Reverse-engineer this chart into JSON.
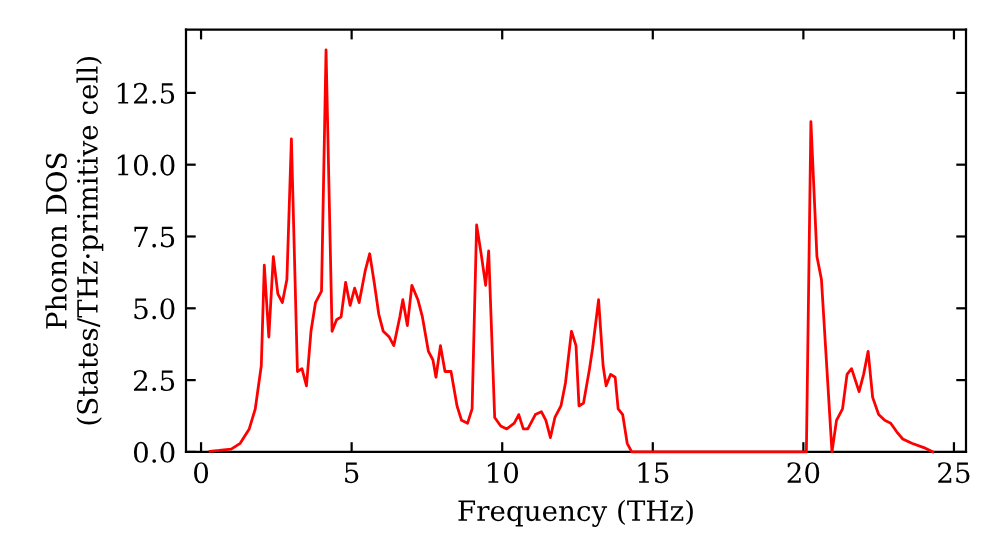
{
  "chart_data": {
    "type": "line",
    "xlabel": "Frequency (THz)",
    "ylabel": "Phonon DOS\n(States/THz·primitive cell)",
    "x": [
      0.3,
      0.6,
      1.0,
      1.3,
      1.6,
      1.8,
      2.0,
      2.1,
      2.25,
      2.4,
      2.55,
      2.7,
      2.85,
      3.0,
      3.2,
      3.35,
      3.5,
      3.65,
      3.8,
      4.0,
      4.15,
      4.35,
      4.5,
      4.65,
      4.8,
      4.95,
      5.1,
      5.25,
      5.45,
      5.6,
      5.75,
      5.9,
      6.05,
      6.25,
      6.4,
      6.6,
      6.7,
      6.85,
      7.0,
      7.2,
      7.35,
      7.55,
      7.7,
      7.8,
      7.95,
      8.1,
      8.3,
      8.5,
      8.65,
      8.85,
      9.0,
      9.15,
      9.3,
      9.45,
      9.55,
      9.75,
      9.95,
      10.15,
      10.4,
      10.55,
      10.7,
      10.85,
      11.1,
      11.3,
      11.45,
      11.6,
      11.75,
      11.95,
      12.1,
      12.3,
      12.45,
      12.55,
      12.7,
      12.9,
      13.0,
      13.2,
      13.35,
      13.45,
      13.6,
      13.75,
      13.85,
      14.0,
      14.15,
      14.3,
      20.0,
      20.1,
      20.25,
      20.45,
      20.6,
      20.95,
      21.1,
      21.3,
      21.45,
      21.6,
      21.85,
      22.0,
      22.15,
      22.3,
      22.5,
      22.7,
      22.9,
      23.1,
      23.3,
      23.6,
      24.0,
      24.3
    ],
    "series": [
      {
        "color": "#ff0000",
        "values": [
          0.02,
          0.05,
          0.1,
          0.3,
          0.8,
          1.5,
          3.0,
          6.5,
          4.0,
          6.8,
          5.5,
          5.2,
          6.0,
          10.9,
          2.8,
          2.9,
          2.3,
          4.2,
          5.2,
          5.6,
          14.0,
          4.2,
          4.6,
          4.7,
          5.9,
          5.1,
          5.7,
          5.2,
          6.3,
          6.9,
          5.9,
          4.8,
          4.2,
          4.0,
          3.7,
          4.7,
          5.3,
          4.4,
          5.8,
          5.3,
          4.7,
          3.5,
          3.2,
          2.6,
          3.7,
          2.8,
          2.8,
          1.6,
          1.1,
          1.0,
          1.5,
          7.9,
          6.9,
          5.8,
          7.0,
          1.2,
          0.9,
          0.8,
          1.0,
          1.3,
          0.8,
          0.8,
          1.3,
          1.4,
          1.1,
          0.5,
          1.2,
          1.6,
          2.4,
          4.2,
          3.7,
          1.6,
          1.7,
          2.9,
          3.6,
          5.3,
          3.0,
          2.3,
          2.7,
          2.6,
          1.5,
          1.3,
          0.3,
          0,
          0,
          0,
          11.5,
          6.8,
          6.0,
          0.0,
          1.1,
          1.5,
          2.7,
          2.9,
          2.1,
          2.7,
          3.5,
          1.9,
          1.3,
          1.1,
          1.0,
          0.7,
          0.45,
          0.3,
          0.15,
          0.0
        ]
      }
    ],
    "xlim": [
      -0.5,
      25.4
    ],
    "ylim": [
      0,
      14.7
    ],
    "xticks": [
      0,
      5,
      10,
      15,
      20,
      25
    ],
    "yticks": [
      {
        "value": 0,
        "label": "0.0"
      },
      {
        "value": 2.5,
        "label": "2.5"
      },
      {
        "value": 5,
        "label": "5.0"
      },
      {
        "value": 7.5,
        "label": "7.5"
      },
      {
        "value": 10,
        "label": "10.0"
      },
      {
        "value": 12.5,
        "label": "12.5"
      }
    ],
    "grid": false,
    "legend": false,
    "marker": "none",
    "line_style": "solid"
  }
}
